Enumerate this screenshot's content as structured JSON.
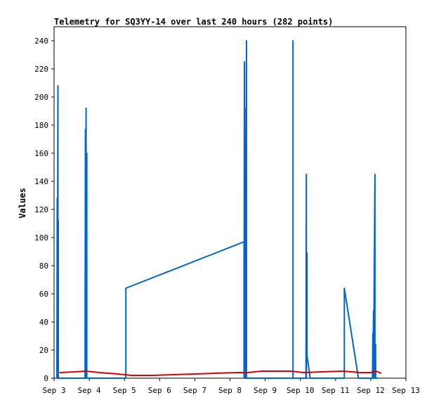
{
  "chart_data": {
    "type": "line",
    "title": "Telemetry for SQ3YY-14 over last 240 hours (282 points)",
    "xlabel": "",
    "ylabel": "Values",
    "xlim": [
      "Sep 3",
      "Sep 13"
    ],
    "ylim": [
      0,
      250
    ],
    "x_ticks": [
      "Sep 3",
      "Sep 4",
      "Sep 5",
      "Sep 6",
      "Sep 7",
      "Sep 8",
      "Sep 9",
      "Sep 10",
      "Sep 11",
      "Sep 12",
      "Sep 13"
    ],
    "y_ticks": [
      0,
      20,
      40,
      60,
      80,
      100,
      120,
      140,
      160,
      180,
      200,
      220,
      240
    ],
    "grid": false,
    "legend": "none",
    "colors": {
      "series_a": "#0066cc",
      "series_b": "#dd0000",
      "axes": "#000000"
    },
    "series": [
      {
        "color": "#0066cc",
        "points": [
          [
            3.08,
            0
          ],
          [
            3.09,
            128
          ],
          [
            3.09,
            0
          ],
          [
            3.11,
            208
          ],
          [
            3.11,
            0
          ],
          [
            3.12,
            112
          ],
          [
            3.12,
            0
          ],
          [
            3.88,
            0
          ],
          [
            3.89,
            177
          ],
          [
            3.89,
            0
          ],
          [
            3.91,
            192
          ],
          [
            3.91,
            0
          ],
          [
            3.93,
            160
          ],
          [
            3.93,
            0
          ],
          [
            5.04,
            0
          ],
          [
            5.04,
            64
          ],
          [
            8.4,
            97
          ],
          [
            8.4,
            0
          ],
          [
            8.41,
            225
          ],
          [
            8.41,
            0
          ],
          [
            8.42,
            192
          ],
          [
            8.42,
            0
          ],
          [
            8.44,
            128
          ],
          [
            8.44,
            0
          ],
          [
            8.47,
            240
          ],
          [
            8.47,
            0
          ],
          [
            9.79,
            0
          ],
          [
            9.79,
            240
          ],
          [
            9.79,
            0
          ],
          [
            10.16,
            0
          ],
          [
            10.17,
            145
          ],
          [
            10.17,
            0
          ],
          [
            10.19,
            89
          ],
          [
            10.19,
            16
          ],
          [
            10.28,
            0
          ],
          [
            11.25,
            0
          ],
          [
            11.25,
            64
          ],
          [
            11.65,
            0
          ],
          [
            12.05,
            0
          ],
          [
            12.06,
            32
          ],
          [
            12.06,
            0
          ],
          [
            12.08,
            48
          ],
          [
            12.08,
            0
          ],
          [
            12.12,
            145
          ],
          [
            12.12,
            0
          ],
          [
            12.14,
            24
          ],
          [
            12.14,
            0
          ],
          [
            12.2,
            0
          ]
        ]
      },
      {
        "color": "#dd0000",
        "points": [
          [
            3.15,
            4
          ],
          [
            3.6,
            4.5
          ],
          [
            3.9,
            5
          ],
          [
            4.3,
            4
          ],
          [
            4.8,
            3
          ],
          [
            5.2,
            2
          ],
          [
            5.8,
            2
          ],
          [
            6.4,
            2.5
          ],
          [
            7.0,
            3
          ],
          [
            7.6,
            3.5
          ],
          [
            8.2,
            4
          ],
          [
            8.5,
            4
          ],
          [
            8.9,
            5
          ],
          [
            9.3,
            5
          ],
          [
            9.7,
            5
          ],
          [
            10.1,
            4
          ],
          [
            10.6,
            4.5
          ],
          [
            11.2,
            5
          ],
          [
            11.7,
            4
          ],
          [
            12.0,
            4
          ],
          [
            12.15,
            5
          ],
          [
            12.3,
            3.5
          ]
        ]
      }
    ]
  }
}
